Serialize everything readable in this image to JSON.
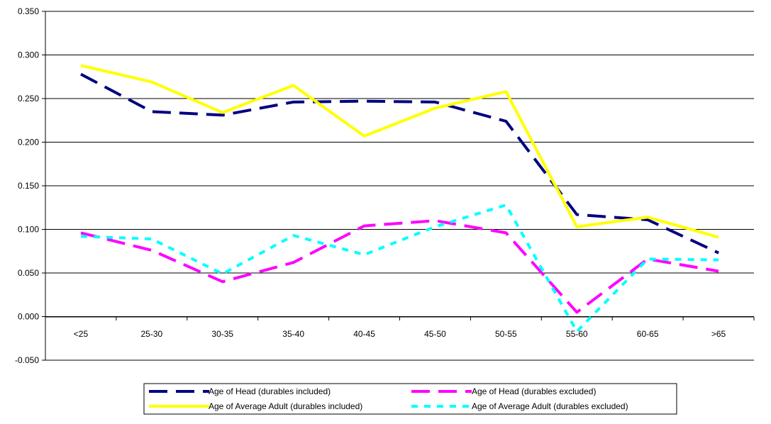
{
  "chart_data": {
    "type": "line",
    "categories": [
      "<25",
      "25-30",
      "30-35",
      "35-40",
      "40-45",
      "45-50",
      "50-55",
      "55-60",
      "60-65",
      ">65"
    ],
    "series": [
      {
        "name": "Age of Head (durables included)",
        "color": "#000080",
        "dash": "long-dash",
        "values": [
          0.278,
          0.235,
          0.231,
          0.246,
          0.247,
          0.246,
          0.224,
          0.117,
          0.111,
          0.073
        ]
      },
      {
        "name": "Age of Head (durables excluded)",
        "color": "#FF00FF",
        "dash": "long-dash",
        "values": [
          0.096,
          0.076,
          0.04,
          0.062,
          0.104,
          0.11,
          0.096,
          0.005,
          0.066,
          0.052
        ]
      },
      {
        "name": "Age of Average Adult (durables included)",
        "color": "#FFFF00",
        "dash": "solid",
        "values": [
          0.288,
          0.269,
          0.234,
          0.265,
          0.207,
          0.239,
          0.258,
          0.103,
          0.114,
          0.091
        ]
      },
      {
        "name": "Age of Average Adult (durables excluded)",
        "color": "#00FFFF",
        "dash": "dotted",
        "values": [
          0.092,
          0.089,
          0.049,
          0.093,
          0.071,
          0.103,
          0.128,
          -0.017,
          0.066,
          0.065
        ]
      }
    ],
    "y_ticks": [
      "0.350",
      "0.300",
      "0.250",
      "0.200",
      "0.150",
      "0.100",
      "0.050",
      "0.000",
      "-0.050"
    ],
    "ylim": [
      -0.05,
      0.35
    ],
    "grid": true,
    "legend_position": "bottom"
  }
}
